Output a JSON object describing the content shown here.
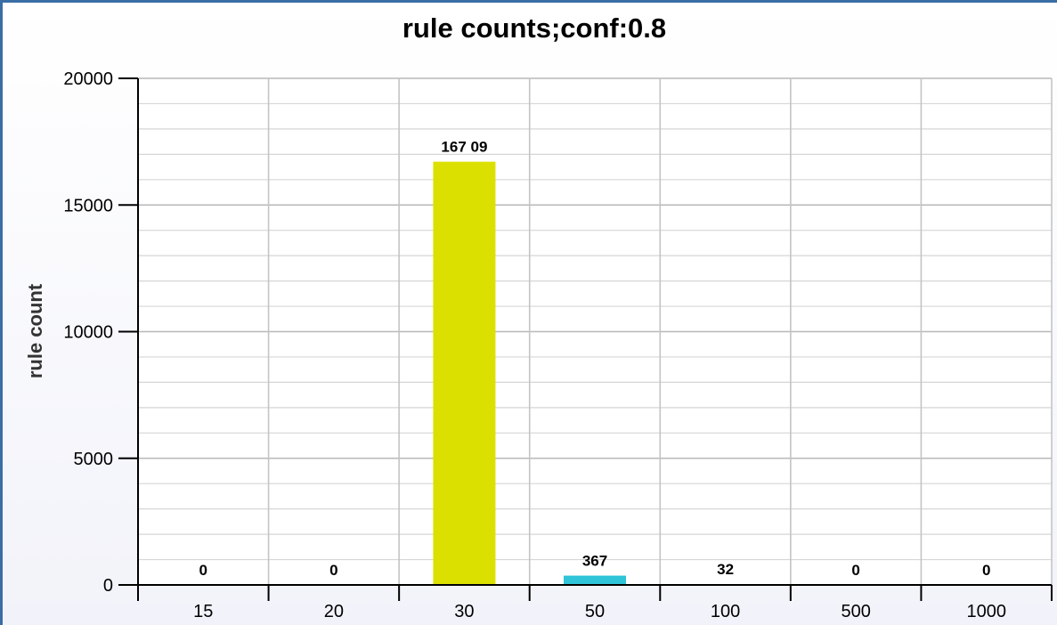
{
  "chart_data": {
    "type": "bar",
    "title": "rule counts;conf:0.8",
    "xlabel": "",
    "ylabel": "rule count",
    "categories": [
      "15",
      "20",
      "30",
      "50",
      "100",
      "500",
      "1000"
    ],
    "values": [
      0,
      0,
      16709,
      367,
      32,
      0,
      0
    ],
    "data_labels": [
      "0",
      "0",
      "167 09",
      "367",
      "32",
      "0",
      "0"
    ],
    "bar_colors": [
      "#dce000",
      "#dce000",
      "#dce000",
      "#2fc4d8",
      "#2fc4d8",
      "#2fc4d8",
      "#2fc4d8"
    ],
    "ylim": [
      0,
      20000
    ],
    "yticks": [
      0,
      5000,
      10000,
      15000,
      20000
    ],
    "grid": true,
    "legend": "none"
  }
}
